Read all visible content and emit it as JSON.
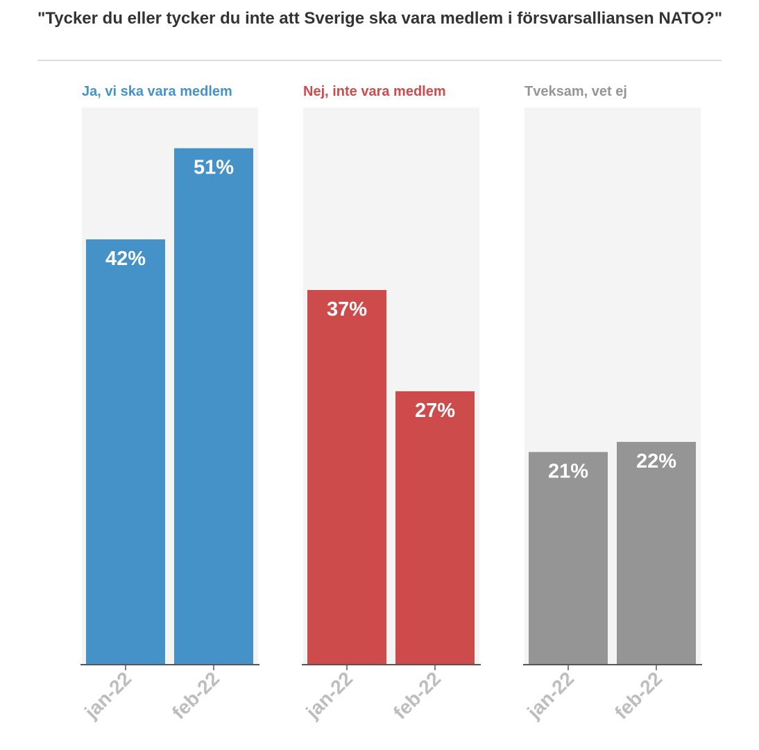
{
  "title": "\"Tycker du eller tycker du inte att Sverige ska vara medlem i försvarsalliansen NATO?\"",
  "chart_data": {
    "type": "bar",
    "title": "\"Tycker du eller tycker du inte att Sverige ska vara medlem i försvarsalliansen NATO?\"",
    "categories": [
      "jan-22",
      "feb-22"
    ],
    "ylim": [
      0,
      55
    ],
    "grid": false,
    "value_suffix": "%",
    "panels": [
      {
        "name": "Ja, vi ska vara medlem",
        "color": "#4592c8",
        "values": [
          42,
          51
        ]
      },
      {
        "name": "Nej, inte vara medlem",
        "color": "#cd4b4b",
        "values": [
          37,
          27
        ]
      },
      {
        "name": "Tveksam, vet ej",
        "color": "#959595",
        "values": [
          21,
          22
        ]
      }
    ],
    "panel_background": "#f4f4f4",
    "label_color": "#ffffff",
    "tick_label_color": "#bdbdbd"
  }
}
